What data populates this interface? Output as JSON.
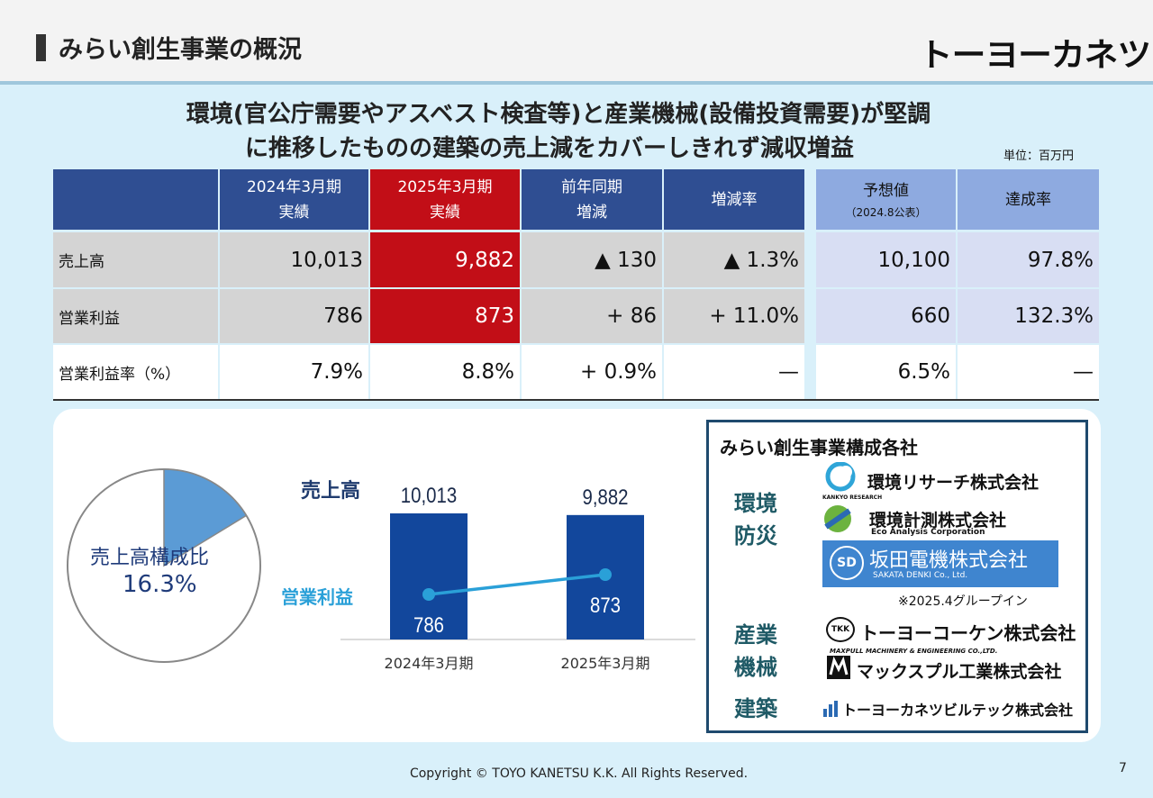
{
  "header": {
    "title": "みらい創生事業の概況",
    "logo": "トーヨーカネツ"
  },
  "headline": {
    "line1": "環境(官公庁需要やアスベスト検査等)と産業機械(設備投資需要)が堅調",
    "line2": "に推移したものの建築の売上減をカバーしきれず減収増益"
  },
  "unit": "単位：百万円",
  "table": {
    "headers": [
      {
        "l1": "2024年3月期",
        "l2": "実績"
      },
      {
        "l1": "2025年3月期",
        "l2": "実績"
      },
      {
        "l1": "前年同期",
        "l2": "増減"
      },
      {
        "l1": "増減率",
        "l2": ""
      },
      {
        "l1": "予想値",
        "l2": "（2024.8公表）"
      },
      {
        "l1": "達成率",
        "l2": ""
      }
    ],
    "rows": [
      {
        "label": "売上高",
        "values": [
          "10,013",
          "9,882",
          "▲ 130",
          "▲ 1.3%",
          "10,100",
          "97.8%"
        ]
      },
      {
        "label": "営業利益",
        "values": [
          "786",
          "873",
          "+ 86",
          "+ 11.0%",
          "660",
          "132.3%"
        ]
      },
      {
        "label": "営業利益率（%）",
        "values": [
          "7.9%",
          "8.8%",
          "+ 0.9%",
          "—",
          "6.5%",
          "—"
        ]
      }
    ]
  },
  "pie": {
    "label": "売上高構成比",
    "value": "16.3%",
    "fraction": 0.163,
    "slice_color": "#5b9bd5"
  },
  "chart_data": {
    "type": "bar",
    "categories": [
      "2024年3月期",
      "2025年3月期"
    ],
    "series": [
      {
        "name": "売上高",
        "values": [
          10013,
          9882
        ],
        "value_labels": [
          "10,013",
          "9,882"
        ],
        "color": "#12479c"
      },
      {
        "name": "営業利益",
        "values": [
          786,
          873
        ],
        "value_labels": [
          "786",
          "873"
        ],
        "color": "#2aa0d8"
      }
    ]
  },
  "companies": {
    "title": "みらい創生事業構成各社",
    "categories": [
      {
        "name_l1": "環境",
        "name_l2": "防災"
      },
      {
        "name_l1": "産業",
        "name_l2": "機械"
      },
      {
        "name_l1": "建築",
        "name_l2": ""
      }
    ],
    "list": [
      {
        "name": "環境リサーチ株式会社",
        "sub": "KANKYO RESEARCH"
      },
      {
        "name": "環境計測株式会社",
        "sub": "Eco Analysis Corporation"
      },
      {
        "name": "坂田電機株式会社",
        "sub": "SAKATA DENKI Co., Ltd.",
        "mark": "SD"
      },
      {
        "name": "トーヨーコーケン株式会社",
        "sub": "TKK"
      },
      {
        "name": "マックスプル工業株式会社",
        "sub": "MAXPULL MACHINERY & ENGINEERING CO.,LTD."
      },
      {
        "name": "トーヨーカネツビルテック株式会社",
        "sub": ""
      }
    ],
    "note": "※2025.4グループイン"
  },
  "footer": {
    "copyright": "Copyright © TOYO KANETSU K.K. All Rights Reserved.",
    "page": "7"
  }
}
